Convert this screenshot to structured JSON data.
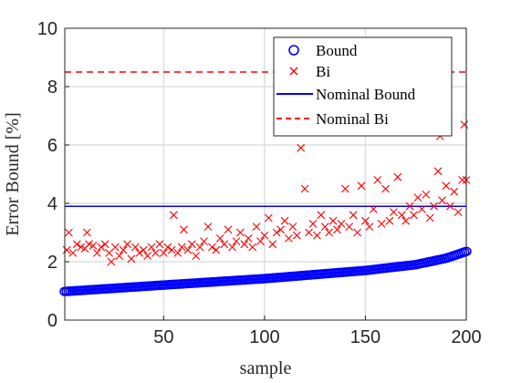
{
  "chart_data": {
    "type": "scatter",
    "xlabel": "sample",
    "ylabel": "Error Bound [%]",
    "xlim": [
      1,
      200
    ],
    "ylim": [
      0,
      10
    ],
    "xticks": [
      50,
      100,
      150,
      200
    ],
    "yticks": [
      0,
      2,
      4,
      6,
      8,
      10
    ],
    "grid": true,
    "legend_position": "top-right",
    "legend": [
      "Bound",
      "Bi",
      "Nominal Bound",
      "Nominal Bi"
    ],
    "colors": {
      "bound": "#0000ff",
      "bi": "#ff0000"
    },
    "series": [
      {
        "name": "Bound",
        "marker": "circle",
        "x_range": [
          1,
          200
        ],
        "y_at_x": [
          [
            1,
            0.98
          ],
          [
            50,
            1.2
          ],
          [
            100,
            1.42
          ],
          [
            150,
            1.7
          ],
          [
            175,
            1.9
          ],
          [
            190,
            2.12
          ],
          [
            200,
            2.35
          ]
        ]
      },
      {
        "name": "Bi",
        "marker": "x",
        "points": [
          [
            2,
            2.4
          ],
          [
            3,
            3.0
          ],
          [
            5,
            2.3
          ],
          [
            7,
            2.6
          ],
          [
            9,
            2.5
          ],
          [
            11,
            2.45
          ],
          [
            12,
            3.0
          ],
          [
            13,
            2.6
          ],
          [
            15,
            2.55
          ],
          [
            17,
            2.3
          ],
          [
            19,
            2.5
          ],
          [
            21,
            2.6
          ],
          [
            23,
            2.3
          ],
          [
            24,
            2.0
          ],
          [
            26,
            2.5
          ],
          [
            28,
            2.2
          ],
          [
            30,
            2.4
          ],
          [
            32,
            2.6
          ],
          [
            34,
            2.1
          ],
          [
            36,
            2.5
          ],
          [
            38,
            2.3
          ],
          [
            40,
            2.4
          ],
          [
            42,
            2.2
          ],
          [
            44,
            2.5
          ],
          [
            46,
            2.3
          ],
          [
            48,
            2.6
          ],
          [
            50,
            2.3
          ],
          [
            52,
            2.5
          ],
          [
            54,
            2.4
          ],
          [
            55,
            3.6
          ],
          [
            57,
            2.3
          ],
          [
            59,
            2.5
          ],
          [
            60,
            3.1
          ],
          [
            62,
            2.4
          ],
          [
            64,
            2.6
          ],
          [
            66,
            2.2
          ],
          [
            68,
            2.5
          ],
          [
            70,
            2.7
          ],
          [
            72,
            3.2
          ],
          [
            74,
            2.5
          ],
          [
            76,
            2.4
          ],
          [
            78,
            2.8
          ],
          [
            80,
            2.6
          ],
          [
            82,
            3.1
          ],
          [
            84,
            2.5
          ],
          [
            86,
            2.7
          ],
          [
            88,
            3.0
          ],
          [
            90,
            2.6
          ],
          [
            92,
            2.8
          ],
          [
            94,
            2.5
          ],
          [
            96,
            3.2
          ],
          [
            98,
            2.7
          ],
          [
            100,
            2.9
          ],
          [
            102,
            3.5
          ],
          [
            104,
            2.6
          ],
          [
            106,
            3.0
          ],
          [
            108,
            3.1
          ],
          [
            110,
            3.4
          ],
          [
            112,
            2.8
          ],
          [
            114,
            3.2
          ],
          [
            116,
            2.9
          ],
          [
            118,
            5.9
          ],
          [
            120,
            4.5
          ],
          [
            122,
            3.0
          ],
          [
            124,
            3.3
          ],
          [
            126,
            2.9
          ],
          [
            128,
            3.6
          ],
          [
            130,
            3.2
          ],
          [
            132,
            3.0
          ],
          [
            134,
            3.4
          ],
          [
            136,
            3.1
          ],
          [
            138,
            3.3
          ],
          [
            140,
            4.5
          ],
          [
            142,
            3.2
          ],
          [
            144,
            3.6
          ],
          [
            146,
            3.0
          ],
          [
            148,
            4.6
          ],
          [
            150,
            3.4
          ],
          [
            152,
            3.2
          ],
          [
            154,
            3.8
          ],
          [
            156,
            4.8
          ],
          [
            158,
            3.3
          ],
          [
            160,
            4.5
          ],
          [
            162,
            3.4
          ],
          [
            164,
            3.7
          ],
          [
            166,
            4.9
          ],
          [
            168,
            3.6
          ],
          [
            170,
            3.4
          ],
          [
            172,
            3.9
          ],
          [
            174,
            3.6
          ],
          [
            176,
            4.2
          ],
          [
            178,
            3.8
          ],
          [
            180,
            4.3
          ],
          [
            182,
            3.5
          ],
          [
            184,
            3.9
          ],
          [
            186,
            5.1
          ],
          [
            187,
            6.3
          ],
          [
            188,
            4.1
          ],
          [
            190,
            4.6
          ],
          [
            192,
            3.9
          ],
          [
            194,
            4.4
          ],
          [
            196,
            3.7
          ],
          [
            198,
            4.8
          ],
          [
            199,
            6.7
          ],
          [
            200,
            4.8
          ]
        ]
      },
      {
        "name": "Nominal Bound",
        "line": "solid",
        "y": 3.9
      },
      {
        "name": "Nominal Bi",
        "line": "dashed",
        "y": 8.5
      }
    ]
  }
}
